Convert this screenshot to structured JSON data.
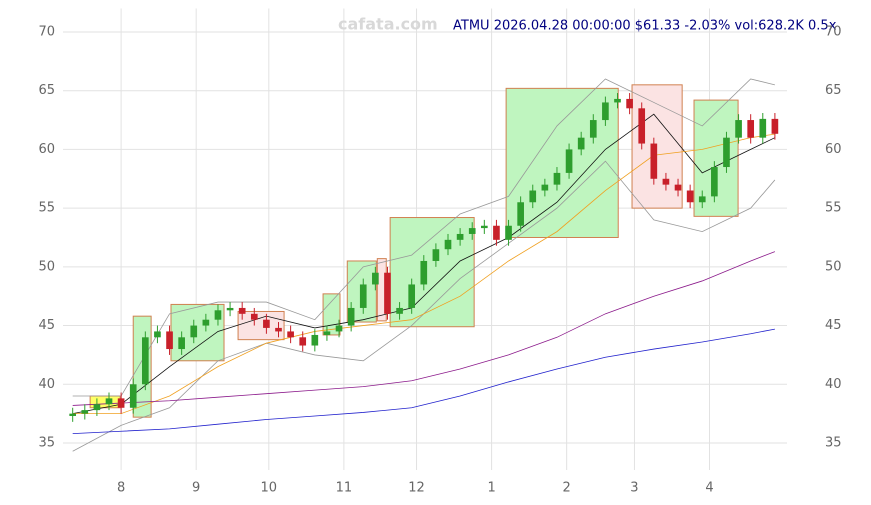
{
  "chart_data": {
    "type": "candlestick",
    "title": "ATMU 2026.04.28 00:00:00 $61.33 -2.03% vol:628.2K 0.5x",
    "watermark": "cafata.com",
    "xlim": [
      -24,
      275
    ],
    "ylim": [
      32.7,
      72
    ],
    "xticks": [
      {
        "value": 0,
        "label": "8"
      },
      {
        "value": 31,
        "label": "9"
      },
      {
        "value": 61,
        "label": "10"
      },
      {
        "value": 92,
        "label": "11"
      },
      {
        "value": 122,
        "label": "12"
      },
      {
        "value": 153,
        "label": "1"
      },
      {
        "value": 184,
        "label": "2"
      },
      {
        "value": 212,
        "label": "3"
      },
      {
        "value": 243,
        "label": "4"
      }
    ],
    "yticks": [
      35,
      40,
      45,
      50,
      55,
      60,
      65,
      70
    ],
    "grid": true,
    "up_color": "#2e9e2e",
    "down_color": "#c8202a",
    "x": [
      -20,
      -15,
      -10,
      -5,
      0,
      5,
      10,
      15,
      20,
      25,
      30,
      35,
      40,
      45,
      50,
      55,
      60,
      65,
      70,
      75,
      80,
      85,
      90,
      95,
      100,
      105,
      110,
      115,
      120,
      125,
      130,
      135,
      140,
      145,
      150,
      155,
      160,
      165,
      170,
      175,
      180,
      185,
      190,
      195,
      200,
      205,
      210,
      215,
      220,
      225,
      230,
      235,
      240,
      245,
      250,
      255,
      260,
      265,
      270
    ],
    "open": [
      37.3,
      37.5,
      37.8,
      38.3,
      38.8,
      38.0,
      40.0,
      44.0,
      44.5,
      43.0,
      44.0,
      45.0,
      45.5,
      46.3,
      46.5,
      46.0,
      45.5,
      44.8,
      44.5,
      44.0,
      43.3,
      44.2,
      44.5,
      45.0,
      46.5,
      48.5,
      49.5,
      46.0,
      46.5,
      48.5,
      50.5,
      51.5,
      52.3,
      52.8,
      53.3,
      53.5,
      52.3,
      53.5,
      55.5,
      56.5,
      57.0,
      58.0,
      60.0,
      61.0,
      62.5,
      64.0,
      64.3,
      63.5,
      60.5,
      57.5,
      57.0,
      56.5,
      55.5,
      56.0,
      58.5,
      61.0,
      62.5,
      61.0,
      62.6
    ],
    "high": [
      38.0,
      38.3,
      38.8,
      39.3,
      39.3,
      40.5,
      44.5,
      45.0,
      45.0,
      44.5,
      45.5,
      46.0,
      46.8,
      47.0,
      47.0,
      46.5,
      46.0,
      45.3,
      45.0,
      44.5,
      44.7,
      45.0,
      45.5,
      47.0,
      49.0,
      50.0,
      50.0,
      47.0,
      49.0,
      51.0,
      52.0,
      52.8,
      53.3,
      53.8,
      54.0,
      54.0,
      54.0,
      56.0,
      57.0,
      57.5,
      58.5,
      60.5,
      61.5,
      63.0,
      64.5,
      64.8,
      64.8,
      64.0,
      61.0,
      58.0,
      57.5,
      57.0,
      56.5,
      59.0,
      61.5,
      63.0,
      63.0,
      63.1,
      63.1
    ],
    "low": [
      36.8,
      37.0,
      37.3,
      37.8,
      37.5,
      37.5,
      39.5,
      43.5,
      42.5,
      42.5,
      43.5,
      44.5,
      45.0,
      45.8,
      45.5,
      45.0,
      44.3,
      44.0,
      43.5,
      42.8,
      42.8,
      43.7,
      44.0,
      44.5,
      46.0,
      48.0,
      45.5,
      45.5,
      46.0,
      48.0,
      50.0,
      51.0,
      51.8,
      52.3,
      52.8,
      51.8,
      51.8,
      53.0,
      55.0,
      56.0,
      56.5,
      57.5,
      59.5,
      60.5,
      62.0,
      63.5,
      63.0,
      60.0,
      57.0,
      56.5,
      56.0,
      55.0,
      55.0,
      55.5,
      58.0,
      60.5,
      60.5,
      60.5,
      60.83
    ],
    "close": [
      37.5,
      37.8,
      38.3,
      38.8,
      38.0,
      40.0,
      44.0,
      44.5,
      43.0,
      44.0,
      45.0,
      45.5,
      46.3,
      46.5,
      46.0,
      45.5,
      44.8,
      44.5,
      44.0,
      43.3,
      44.2,
      44.5,
      45.0,
      46.5,
      48.5,
      49.5,
      46.0,
      46.5,
      48.5,
      50.5,
      51.5,
      52.3,
      52.8,
      53.3,
      53.5,
      52.3,
      53.5,
      55.5,
      56.5,
      57.0,
      58.0,
      60.0,
      61.0,
      62.5,
      64.0,
      64.3,
      63.5,
      60.5,
      57.5,
      57.0,
      56.5,
      55.5,
      56.0,
      58.5,
      61.0,
      62.5,
      61.0,
      62.6,
      61.33
    ],
    "line_x": [
      -20,
      0,
      20,
      40,
      60,
      80,
      100,
      120,
      140,
      160,
      180,
      200,
      220,
      240,
      260,
      270
    ],
    "lines": [
      {
        "color": "#999999",
        "values": [
          39,
          39,
          46,
          47,
          47,
          45.5,
          50,
          51,
          54.5,
          56,
          62,
          66,
          64,
          62,
          66,
          65.5
        ]
      },
      {
        "color": "#999999",
        "values": [
          34.3,
          36.5,
          38,
          42,
          43.5,
          42.5,
          42,
          45,
          49,
          52,
          55,
          59,
          54,
          53,
          55,
          57.4
        ]
      },
      {
        "color": "#111111",
        "values": [
          37.5,
          38.3,
          41.5,
          44.5,
          45.8,
          44.8,
          45.5,
          46.5,
          50.5,
          52.5,
          55.5,
          60,
          63,
          58,
          60,
          61
        ]
      },
      {
        "color": "#f0a020",
        "values": [
          37.5,
          37.5,
          39,
          41.5,
          43.5,
          44.5,
          45,
          45.5,
          47.5,
          50.5,
          53,
          56.5,
          59.5,
          60,
          61,
          61.3
        ]
      },
      {
        "color": "#8b1a8b",
        "values": [
          38.2,
          38.4,
          38.6,
          38.9,
          39.2,
          39.5,
          39.8,
          40.3,
          41.3,
          42.5,
          44,
          46,
          47.5,
          48.8,
          50.5,
          51.3
        ]
      },
      {
        "color": "#2020cc",
        "values": [
          35.8,
          36,
          36.2,
          36.6,
          37,
          37.3,
          37.6,
          38,
          39,
          40.2,
          41.3,
          42.3,
          43,
          43.6,
          44.3,
          44.7
        ]
      }
    ],
    "boxes": [
      {
        "x0": -12.8,
        "x1": -0.4,
        "y0": 38,
        "y1": 39,
        "color": "#ffff66"
      },
      {
        "x0": 5,
        "x1": 12.4,
        "y0": 37.2,
        "y1": 45.8,
        "color": "#bff5bf"
      },
      {
        "x0": 20.6,
        "x1": 42.5,
        "y0": 42,
        "y1": 46.8,
        "color": "#bff5bf"
      },
      {
        "x0": 48.3,
        "x1": 67.3,
        "y0": 43.8,
        "y1": 46.2,
        "color": "#fbe3e3"
      },
      {
        "x0": 83.4,
        "x1": 90.4,
        "y0": 44.2,
        "y1": 47.7,
        "color": "#bff5bf"
      },
      {
        "x0": 93.4,
        "x1": 105.4,
        "y0": 45.3,
        "y1": 50.5,
        "color": "#bff5bf"
      },
      {
        "x0": 105.8,
        "x1": 109.5,
        "y0": 45.4,
        "y1": 50.7,
        "color": "#fbe3e3"
      },
      {
        "x0": 111.1,
        "x1": 145.8,
        "y0": 44.9,
        "y1": 54.2,
        "color": "#bff5bf"
      },
      {
        "x0": 159,
        "x1": 205.3,
        "y0": 52.5,
        "y1": 65.2,
        "color": "#bff5bf"
      },
      {
        "x0": 211,
        "x1": 231.7,
        "y0": 55,
        "y1": 65.5,
        "color": "#fbe3e3"
      },
      {
        "x0": 236.6,
        "x1": 254.8,
        "y0": 54.3,
        "y1": 64.2,
        "color": "#bff5bf"
      }
    ]
  }
}
